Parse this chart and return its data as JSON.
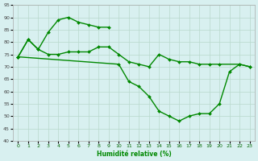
{
  "xlabel": "Humidité relative (%)",
  "xlim": [
    -0.5,
    23.5
  ],
  "ylim": [
    40,
    95
  ],
  "yticks": [
    40,
    45,
    50,
    55,
    60,
    65,
    70,
    75,
    80,
    85,
    90,
    95
  ],
  "xticks": [
    0,
    1,
    2,
    3,
    4,
    5,
    6,
    7,
    8,
    9,
    10,
    11,
    12,
    13,
    14,
    15,
    16,
    17,
    18,
    19,
    20,
    21,
    22,
    23
  ],
  "bg_color": "#d8f0f0",
  "grid_color": "#b8d8cc",
  "line_color": "#008800",
  "lines": [
    {
      "x": [
        0,
        1,
        2,
        3,
        4,
        5,
        6,
        7,
        8,
        9
      ],
      "y": [
        74,
        81,
        77,
        84,
        89,
        90,
        88,
        87,
        86,
        86
      ]
    },
    {
      "x": [
        0,
        1,
        2,
        3,
        4,
        5,
        6,
        7,
        8,
        9,
        10,
        11,
        12,
        13,
        14,
        15,
        16,
        17,
        18,
        19,
        20,
        22,
        23
      ],
      "y": [
        74,
        81,
        77,
        75,
        75,
        76,
        76,
        76,
        78,
        78,
        75,
        72,
        71,
        70,
        75,
        73,
        72,
        72,
        71,
        71,
        71,
        71,
        70
      ]
    },
    {
      "x": [
        0,
        10,
        11,
        12,
        13,
        14,
        15,
        16,
        17,
        18,
        19,
        20,
        21,
        22,
        23
      ],
      "y": [
        74,
        71,
        64,
        62,
        58,
        52,
        50,
        48,
        50,
        51,
        51,
        55,
        68,
        71,
        70
      ]
    }
  ],
  "marker": "D",
  "markersize": 2.0,
  "linewidth": 1.0
}
